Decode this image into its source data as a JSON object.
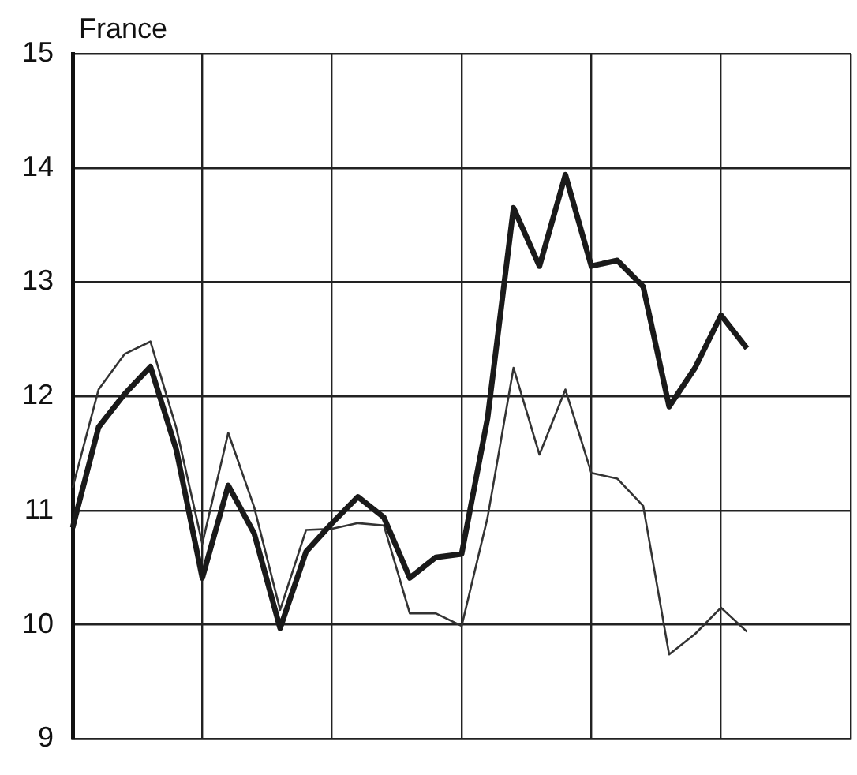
{
  "chart_data": {
    "type": "line",
    "title": "France",
    "categories": [
      null,
      null,
      null,
      null,
      null,
      null,
      null,
      null,
      null,
      null,
      null,
      null,
      null,
      null,
      null,
      null,
      null,
      null,
      null,
      null,
      null,
      null,
      null,
      null,
      null,
      null,
      null,
      null,
      null,
      null,
      null
    ],
    "series": [
      {
        "color": "#1a1a1a",
        "values": [
          10.85,
          11.73,
          12.02,
          12.26,
          11.53,
          10.41,
          11.22,
          10.8,
          9.97,
          10.64,
          10.89,
          11.12,
          10.94,
          10.41,
          10.59,
          10.62,
          11.81,
          13.65,
          13.14,
          13.94,
          13.14,
          13.19,
          12.96,
          11.91,
          12.25,
          12.71,
          12.42,
          null,
          null,
          null,
          null
        ]
      },
      {
        "color": "#333333",
        "values": [
          11.2,
          12.06,
          12.37,
          12.48,
          11.72,
          10.71,
          11.68,
          11.03,
          10.13,
          10.83,
          10.84,
          10.89,
          10.87,
          10.1,
          10.1,
          9.99,
          10.94,
          12.25,
          11.49,
          12.06,
          11.33,
          11.28,
          11.04,
          9.74,
          9.92,
          10.15,
          9.94,
          null,
          null,
          null,
          null
        ]
      }
    ],
    "ylim": [
      9,
      15
    ],
    "yticks": [
      9,
      10,
      11,
      12,
      13,
      14,
      15
    ],
    "tick_labels": "y",
    "grid": true,
    "legend": false,
    "marker": "none",
    "line_style": "solid"
  }
}
